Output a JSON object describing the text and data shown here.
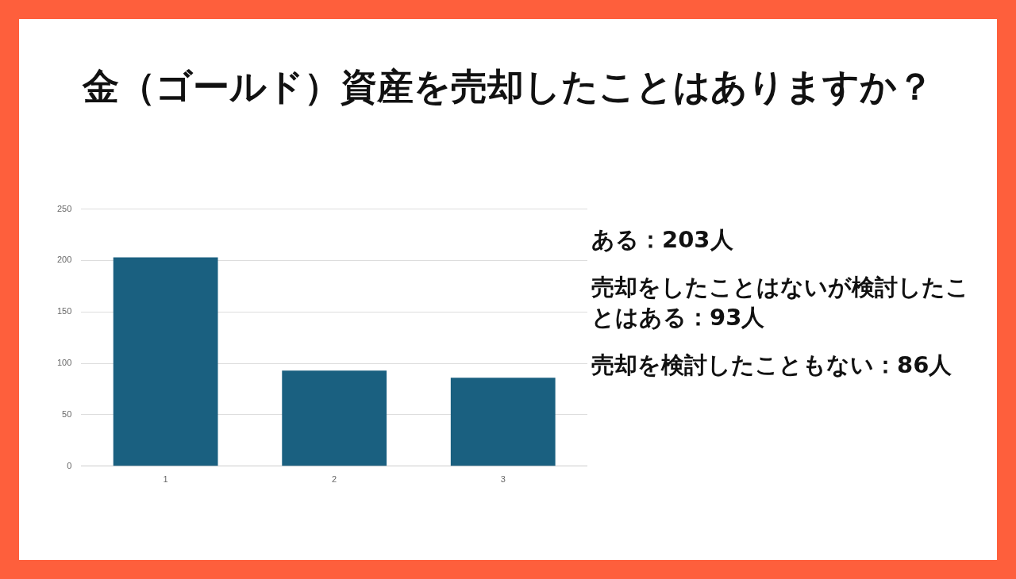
{
  "chart_data": {
    "type": "bar",
    "title": "金（ゴールド）資産を売却したことはありますか？",
    "categories": [
      "1",
      "2",
      "3"
    ],
    "values": [
      203,
      93,
      86
    ],
    "color": "#1a6080",
    "ylim": [
      0,
      250
    ],
    "yticks": [
      0,
      50,
      100,
      150,
      200,
      250
    ],
    "grid": "y",
    "annotations": [
      "ある：203人",
      "売却をしたことはないが検討したことはある：93人",
      "売却を検討したこともない：86人"
    ]
  }
}
